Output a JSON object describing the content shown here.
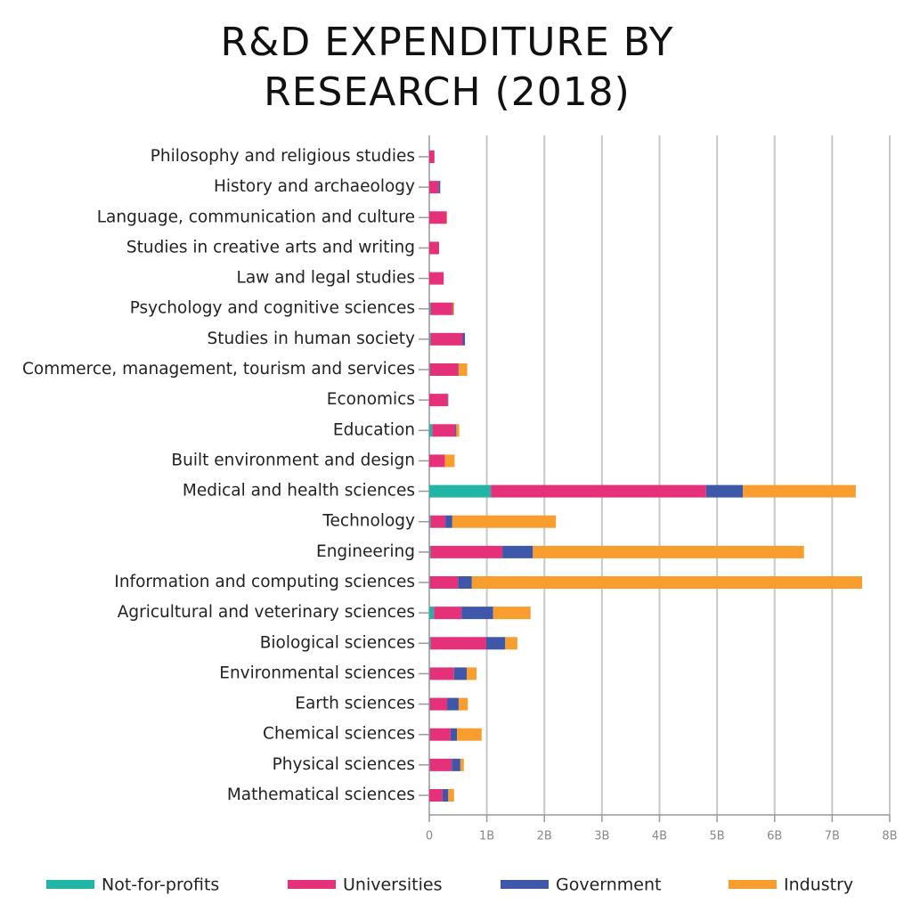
{
  "chart_data": {
    "type": "stacked-bar-horizontal",
    "title": "R&D EXPENDITURE BY RESEARCH (2018)",
    "categories": [
      "Philosophy and religious studies",
      "History and archaeology",
      "Language, communication and culture",
      "Studies in creative arts and writing",
      "Law and legal studies",
      "Psychology and cognitive sciences",
      "Studies in human society",
      "Commerce, management, tourism and services",
      "Economics",
      "Education",
      "Built environment and design",
      "Medical and health sciences",
      "Technology",
      "Engineering",
      "Information and computing sciences",
      "Agricultural and veterinary sciences",
      "Biological sciences",
      "Environmental sciences",
      "Earth sciences",
      "Chemical sciences",
      "Physical sciences",
      "Mathematical sciences"
    ],
    "series": [
      {
        "name": "Not-for-profits",
        "color": "#22b5a5",
        "values": [
          0,
          0,
          0,
          0,
          0,
          0.02,
          0.02,
          0.01,
          0,
          0.05,
          0,
          1.07,
          0.02,
          0.02,
          0.01,
          0.08,
          0.02,
          0.01,
          0.01,
          0.01,
          0.01,
          0
        ]
      },
      {
        "name": "Universities",
        "color": "#e5307a",
        "values": [
          0.09,
          0.16,
          0.3,
          0.17,
          0.25,
          0.38,
          0.56,
          0.49,
          0.32,
          0.4,
          0.27,
          3.74,
          0.26,
          1.25,
          0.49,
          0.48,
          0.97,
          0.42,
          0.3,
          0.36,
          0.38,
          0.23
        ]
      },
      {
        "name": "Government",
        "color": "#3e57a8",
        "values": [
          0,
          0.03,
          0,
          0,
          0,
          0.01,
          0.04,
          0.01,
          0.01,
          0.02,
          0,
          0.64,
          0.12,
          0.53,
          0.24,
          0.55,
          0.33,
          0.22,
          0.2,
          0.11,
          0.15,
          0.1
        ]
      },
      {
        "name": "Industry",
        "color": "#f99d2f",
        "values": [
          0,
          0,
          0.01,
          0,
          0,
          0.02,
          0,
          0.15,
          0,
          0.05,
          0.17,
          1.96,
          1.8,
          4.71,
          6.78,
          0.65,
          0.21,
          0.17,
          0.16,
          0.43,
          0.06,
          0.1
        ]
      }
    ],
    "xlim": [
      0,
      8
    ],
    "xticks": [
      0,
      {
        "value": 1,
        "label": "1B"
      },
      {
        "value": 2,
        "label": "2B"
      },
      {
        "value": 3,
        "label": "3B"
      },
      {
        "value": 4,
        "label": "4B"
      },
      {
        "value": 5,
        "label": "5B"
      },
      {
        "value": 6,
        "label": "6B"
      },
      {
        "value": 7,
        "label": "7B"
      },
      {
        "value": 8,
        "label": "8B"
      }
    ],
    "grid": true,
    "legend": "bottom"
  }
}
